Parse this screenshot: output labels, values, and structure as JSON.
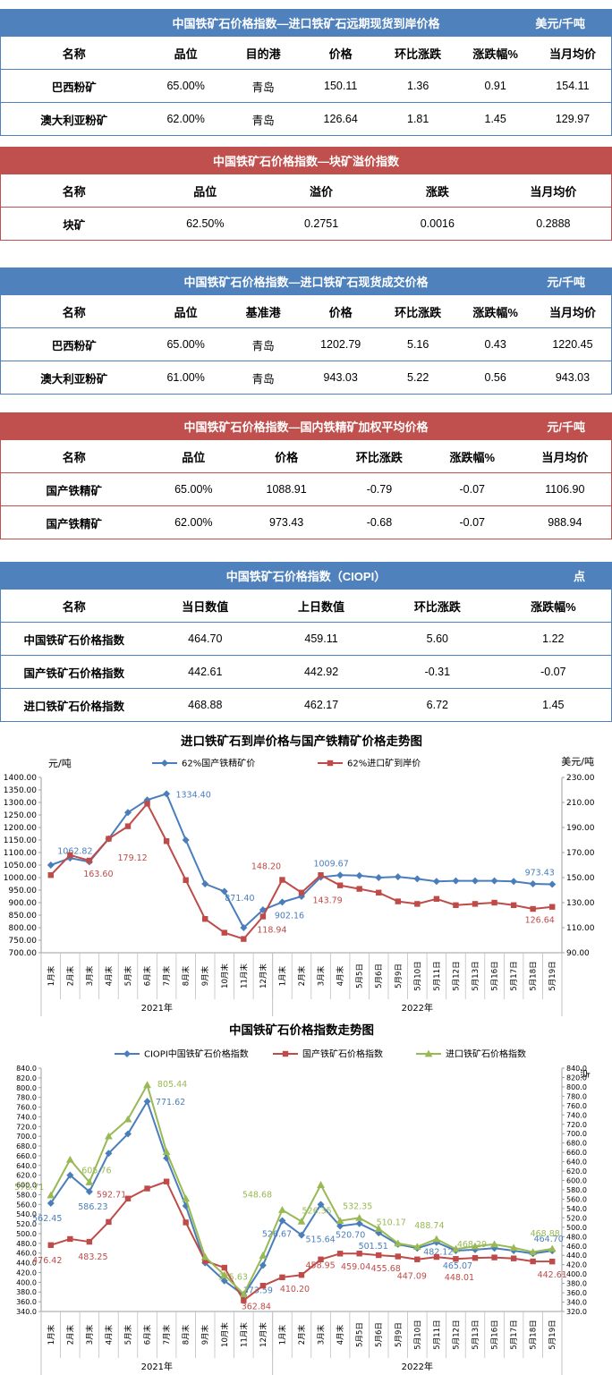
{
  "tables": [
    {
      "title": "中国铁矿石价格指数—进口铁矿石远期现货到岸价格",
      "unit": "美元/千吨",
      "theme": "blue",
      "columns": [
        "名称",
        "品位",
        "目的港",
        "价格",
        "环比涨跌",
        "涨跌幅%",
        "当月均价"
      ],
      "rows": [
        [
          "巴西粉矿",
          "65.00%",
          "青岛",
          "150.11",
          "1.36",
          "0.91",
          "154.11"
        ],
        [
          "澳大利亚粉矿",
          "62.00%",
          "青岛",
          "126.64",
          "1.81",
          "1.45",
          "129.97"
        ]
      ]
    },
    {
      "title": "中国铁矿石价格指数—块矿溢价指数",
      "unit": "",
      "theme": "red",
      "columns": [
        "名称",
        "品位",
        "溢价",
        "涨跌",
        "当月均价"
      ],
      "rows": [
        [
          "块矿",
          "62.50%",
          "0.2751",
          "0.0016",
          "0.2888"
        ]
      ]
    },
    {
      "title": "中国铁矿石价格指数—进口铁矿石现货成交价格",
      "unit": "元/千吨",
      "theme": "blue",
      "columns": [
        "名称",
        "品位",
        "基准港",
        "价格",
        "环比涨跌",
        "涨跌幅%",
        "当月均价"
      ],
      "rows": [
        [
          "巴西粉矿",
          "65.00%",
          "青岛",
          "1202.79",
          "5.16",
          "0.43",
          "1220.45"
        ],
        [
          "澳大利亚粉矿",
          "61.00%",
          "青岛",
          "943.03",
          "5.22",
          "0.56",
          "943.03"
        ]
      ]
    },
    {
      "title": "中国铁矿石价格指数—国内铁精矿加权平均价格",
      "unit": "元/千吨",
      "theme": "red",
      "columns": [
        "名称",
        "品位",
        "价格",
        "环比涨跌",
        "涨跌幅%",
        "当月均价"
      ],
      "rows": [
        [
          "国产铁精矿",
          "65.00%",
          "1088.91",
          "-0.79",
          "-0.07",
          "1106.90"
        ],
        [
          "国产铁精矿",
          "62.00%",
          "973.43",
          "-0.68",
          "-0.07",
          "988.94"
        ]
      ]
    },
    {
      "title": "中国铁矿石价格指数（CIOPI）",
      "unit": "点",
      "theme": "blue",
      "columns": [
        "名称",
        "当日数值",
        "上日数值",
        "环比涨跌",
        "涨跌幅%"
      ],
      "rows": [
        [
          "中国铁矿石价格指数",
          "464.70",
          "459.11",
          "5.60",
          "1.22"
        ],
        [
          "国产铁矿石价格指数",
          "442.61",
          "442.92",
          "-0.31",
          "-0.07"
        ],
        [
          "进口铁矿石价格指数",
          "468.88",
          "462.17",
          "6.72",
          "1.45"
        ]
      ]
    }
  ],
  "chart_data": [
    {
      "type": "line",
      "title": "进口铁矿石到岸价格与国产铁精矿价格走势图",
      "left_axis": {
        "unit": "元/吨",
        "min": 700,
        "max": 1400,
        "step": 50,
        "decimals": 2
      },
      "right_axis": {
        "unit": "美元/吨",
        "min": 90,
        "max": 230,
        "step": 20,
        "decimals": 2
      },
      "categories": [
        "1月末",
        "2月末",
        "3月末",
        "4月末",
        "5月末",
        "6月末",
        "7月末",
        "8月末",
        "9月末",
        "10月末",
        "11月末",
        "12月末",
        "1月末",
        "2月末",
        "3月末",
        "4月末",
        "5月5日",
        "5月6日",
        "5月9日",
        "5月10日",
        "5月11日",
        "5月12日",
        "5月13日",
        "5月16日",
        "5月17日",
        "5月18日",
        "5月19日"
      ],
      "groups": [
        {
          "label": "2021年",
          "count": 12
        },
        {
          "label": "2022年",
          "count": 15
        }
      ],
      "series": [
        {
          "name": "62%国产铁精矿价",
          "color": "#4a7ebb",
          "marker": "diamond",
          "axis": "left",
          "values": [
            1050,
            1078,
            1062.82,
            1155,
            1260,
            1310,
            1334.4,
            1150,
            975,
            945,
            800,
            871.4,
            902.16,
            925,
            1002,
            1009.67,
            1008,
            1000,
            1003,
            995,
            985,
            987,
            987,
            987,
            985,
            975,
            973.43
          ],
          "labels": [
            {
              "i": 2,
              "text": "1062.82",
              "dx": -16,
              "dy": -9
            },
            {
              "i": 6,
              "text": "1334.40",
              "dx": 30,
              "dy": 4
            },
            {
              "i": 11,
              "text": "871.40",
              "dx": -26,
              "dy": -10
            },
            {
              "i": 12,
              "text": "902.16",
              "dx": 8,
              "dy": 18
            },
            {
              "i": 15,
              "text": "1009.67",
              "dx": -10,
              "dy": -10
            },
            {
              "i": 26,
              "text": "973.43",
              "dx": -14,
              "dy": -10
            }
          ]
        },
        {
          "name": "62%进口矿到岸价",
          "color": "#be4b48",
          "marker": "square",
          "axis": "right",
          "values": [
            152,
            168,
            163.6,
            181,
            191,
            209,
            179.12,
            148,
            117,
            106,
            101,
            118.94,
            148.2,
            138,
            152,
            143.79,
            141,
            138,
            131,
            129,
            133,
            128,
            129,
            130,
            128,
            125,
            126.64
          ],
          "labels": [
            {
              "i": 2,
              "text": "163.60",
              "dx": 10,
              "dy": 18
            },
            {
              "i": 6,
              "text": "179.12",
              "dx": -38,
              "dy": 22
            },
            {
              "i": 11,
              "text": "118.94",
              "dx": 10,
              "dy": 18
            },
            {
              "i": 12,
              "text": "148.20",
              "dx": -18,
              "dy": -12
            },
            {
              "i": 15,
              "text": "143.79",
              "dx": -14,
              "dy": 20
            },
            {
              "i": 26,
              "text": "126.64",
              "dx": -14,
              "dy": 18
            }
          ]
        }
      ]
    },
    {
      "type": "line",
      "title": "中国铁矿石价格指数走势图",
      "left_axis": {
        "unit": "",
        "min": 340,
        "max": 840,
        "step": 20,
        "decimals": 1
      },
      "right_axis": {
        "unit": "点",
        "min": 320,
        "max": 840,
        "step": 20,
        "decimals": 1
      },
      "categories": [
        "1月末",
        "2月末",
        "3月末",
        "4月末",
        "5月末",
        "6月末",
        "7月末",
        "8月末",
        "9月末",
        "10月末",
        "11月末",
        "12月末",
        "1月末",
        "2月末",
        "3月末",
        "4月末",
        "5月5日",
        "5月6日",
        "5月9日",
        "5月10日",
        "5月11日",
        "5月12日",
        "5月13日",
        "5月16日",
        "5月17日",
        "5月18日",
        "5月19日"
      ],
      "groups": [
        {
          "label": "2021年",
          "count": 12
        },
        {
          "label": "2022年",
          "count": 15
        }
      ],
      "series": [
        {
          "name": "CIOPI中国铁矿石价格指数",
          "color": "#4a7ebb",
          "marker": "diamond",
          "axis": "left",
          "values": [
            562.45,
            620,
            586.23,
            665,
            705,
            771.62,
            655,
            557,
            440,
            403,
            373.59,
            435,
            526.67,
            497,
            560,
            515.64,
            520.7,
            501.51,
            478,
            470,
            482.12,
            465.07,
            467,
            470,
            465,
            459.11,
            464.7
          ],
          "labels": [
            {
              "i": 0,
              "text": "562.45",
              "dx": -4,
              "dy": 20
            },
            {
              "i": 2,
              "text": "586.23",
              "dx": 4,
              "dy": 20
            },
            {
              "i": 5,
              "text": "771.62",
              "dx": 26,
              "dy": 4
            },
            {
              "i": 10,
              "text": "373.59",
              "dx": 16,
              "dy": -2
            },
            {
              "i": 12,
              "text": "526.67",
              "dx": -6,
              "dy": 18
            },
            {
              "i": 15,
              "text": "515.64",
              "dx": -22,
              "dy": 18
            },
            {
              "i": 16,
              "text": "520.70",
              "dx": -10,
              "dy": 16
            },
            {
              "i": 17,
              "text": "501.51",
              "dx": -6,
              "dy": 18
            },
            {
              "i": 20,
              "text": "482.12",
              "dx": 2,
              "dy": 14
            },
            {
              "i": 21,
              "text": "465.07",
              "dx": 2,
              "dy": 20
            },
            {
              "i": 26,
              "text": "464.70",
              "dx": -4,
              "dy": -10
            }
          ]
        },
        {
          "name": "国产铁矿石价格指数",
          "color": "#be4b48",
          "marker": "square",
          "axis": "left",
          "values": [
            476.42,
            489,
            483.25,
            524,
            572,
            592.71,
            607,
            523,
            444,
            430,
            362.84,
            393,
            410.2,
            415,
            447,
            458.95,
            459.04,
            455.68,
            453,
            447.09,
            452,
            448.01,
            450,
            451,
            449,
            442.92,
            442.61
          ],
          "labels": [
            {
              "i": 0,
              "text": "476.42",
              "dx": -4,
              "dy": 20
            },
            {
              "i": 2,
              "text": "483.25",
              "dx": 4,
              "dy": 20
            },
            {
              "i": 5,
              "text": "592.71",
              "dx": -40,
              "dy": 10
            },
            {
              "i": 10,
              "text": "362.84",
              "dx": 14,
              "dy": 10
            },
            {
              "i": 12,
              "text": "410.20",
              "dx": 14,
              "dy": 16
            },
            {
              "i": 15,
              "text": "458.95",
              "dx": -22,
              "dy": 16
            },
            {
              "i": 16,
              "text": "459.04",
              "dx": -4,
              "dy": 18
            },
            {
              "i": 17,
              "text": "455.68",
              "dx": 8,
              "dy": 18
            },
            {
              "i": 19,
              "text": "447.09",
              "dx": -6,
              "dy": 22
            },
            {
              "i": 21,
              "text": "448.01",
              "dx": 4,
              "dy": 24
            },
            {
              "i": 26,
              "text": "442.61",
              "dx": 0,
              "dy": 18
            }
          ]
        },
        {
          "name": "进口铁矿石价格指数",
          "color": "#98b954",
          "marker": "triangle",
          "axis": "left",
          "values": [
            578.71,
            652,
            605.76,
            700,
            735,
            805.44,
            668,
            572,
            452,
            415,
            375.63,
            455,
            548.68,
            525,
            600,
            526.35,
            532.35,
            510.17,
            480,
            473,
            488.74,
            468.29,
            474,
            478,
            471,
            462.17,
            468.88
          ],
          "labels": [
            {
              "i": 0,
              "text": "578.71",
              "dx": -24,
              "dy": -6
            },
            {
              "i": 2,
              "text": "605.76",
              "dx": 8,
              "dy": -10
            },
            {
              "i": 5,
              "text": "805.44",
              "dx": 28,
              "dy": 2
            },
            {
              "i": 10,
              "text": "375.63",
              "dx": -12,
              "dy": -16
            },
            {
              "i": 12,
              "text": "548.68",
              "dx": -28,
              "dy": -14
            },
            {
              "i": 15,
              "text": "526.35",
              "dx": -26,
              "dy": -8
            },
            {
              "i": 16,
              "text": "532.35",
              "dx": -2,
              "dy": -10
            },
            {
              "i": 17,
              "text": "510.17",
              "dx": 14,
              "dy": -4
            },
            {
              "i": 20,
              "text": "488.74",
              "dx": -8,
              "dy": -12
            },
            {
              "i": 21,
              "text": "468.29",
              "dx": 18,
              "dy": -2
            },
            {
              "i": 26,
              "text": "468.88",
              "dx": -8,
              "dy": -14
            }
          ]
        }
      ]
    }
  ],
  "colors": {
    "header_blue": "#4f81bd",
    "header_red": "#c0504d",
    "series_blue": "#4a7ebb",
    "series_red": "#be4b48",
    "series_green": "#98b954",
    "axis_gray": "#9aa0a6"
  }
}
